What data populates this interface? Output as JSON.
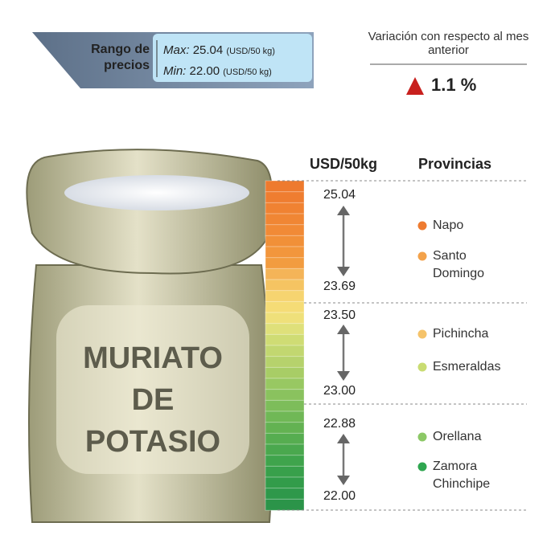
{
  "header": {
    "range_label": "Rango de precios",
    "max_label": "Max:",
    "max_value": "25.04",
    "max_unit": "(USD/50 kg)",
    "min_label": "Min:",
    "min_value": "22.00",
    "min_unit": "(USD/50 kg)"
  },
  "variation": {
    "title": "Variación con respecto al mes anterior",
    "value": "1.1 %"
  },
  "product": {
    "lines": [
      "MURIATO",
      "DE",
      "POTASIO"
    ]
  },
  "table": {
    "price_header": "USD/50kg",
    "province_header": "Provincias",
    "groups": [
      {
        "top": "25.04",
        "bottom": "23.69",
        "provinces": [
          {
            "name": "Napo",
            "color": "#ee7b30"
          },
          {
            "name": "Santo Domingo",
            "color": "#f3a24a"
          }
        ]
      },
      {
        "top": "23.50",
        "bottom": "23.00",
        "provinces": [
          {
            "name": "Pichincha",
            "color": "#f5c36a"
          },
          {
            "name": "Esmeraldas",
            "color": "#c9dc72"
          }
        ]
      },
      {
        "top": "22.88",
        "bottom": "22.00",
        "provinces": [
          {
            "name": "Orellana",
            "color": "#8cc866"
          },
          {
            "name": "Zamora Chinchipe",
            "color": "#2fa650"
          }
        ]
      }
    ]
  }
}
